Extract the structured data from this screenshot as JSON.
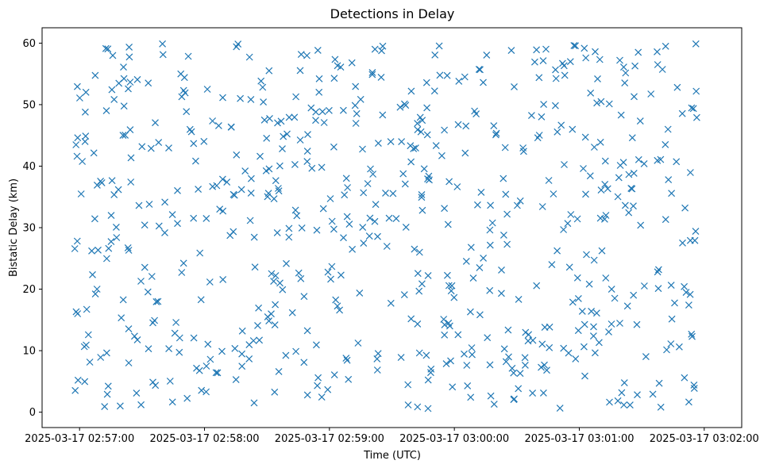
{
  "chart_data": {
    "type": "scatter",
    "title": "Detections in Delay",
    "xlabel": "Time (UTC)",
    "ylabel": "Bistatic Delay (km)",
    "marker": "x",
    "color": "#1f77b4",
    "grid": false,
    "x_is_time": true,
    "xlim": [
      "2025-03-17 02:56:42",
      "2025-03-17 03:02:18"
    ],
    "ylim": [
      -2.5,
      62.5
    ],
    "xticks": [
      "2025-03-17 02:57:00",
      "2025-03-17 02:58:00",
      "2025-03-17 02:59:00",
      "2025-03-17 03:00:00",
      "2025-03-17 03:01:00",
      "2025-03-17 03:02:00"
    ],
    "yticks": [
      0,
      10,
      20,
      30,
      40,
      50,
      60
    ],
    "start_time": "2025-03-17 02:56:57",
    "end_time": "2025-03-17 03:01:58",
    "y_min": 0.5,
    "y_max": 60,
    "n_points": 650
  }
}
